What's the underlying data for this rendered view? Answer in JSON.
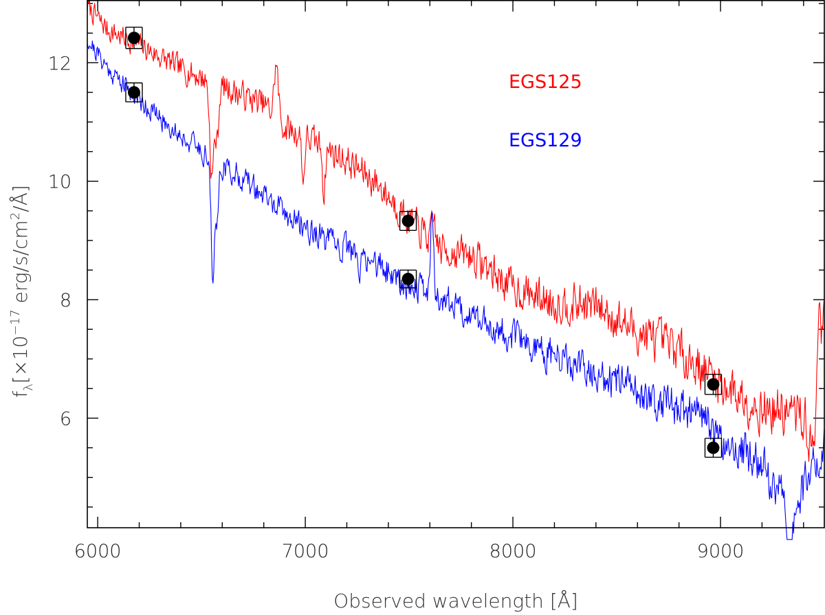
{
  "chart_data": {
    "type": "line",
    "title": "",
    "xlabel": "Observed wavelength [Å]",
    "ylabel_parts": {
      "f": "f",
      "lambda": "λ",
      "bracket_open": "[×10",
      "exponent": "−17",
      "units_a": " erg/s/cm",
      "units_exp": "2",
      "units_b": "/Å]"
    },
    "xlim": [
      5950,
      9500
    ],
    "ylim": [
      4.15,
      13.05
    ],
    "xticks": [
      6000,
      7000,
      8000,
      9000
    ],
    "yticks": [
      6,
      8,
      10,
      12
    ],
    "x_minor_step": 200,
    "y_minor_step": 0.5,
    "legend": [
      {
        "name": "EGS125",
        "color": "#ff0000"
      },
      {
        "name": "EGS129",
        "color": "#0000ff"
      }
    ],
    "series": [
      {
        "name": "EGS125",
        "color": "#ff0000",
        "noise": 0.17,
        "seed": 7,
        "anchors": [
          [
            5950,
            12.95
          ],
          [
            6050,
            12.55
          ],
          [
            6200,
            12.3
          ],
          [
            6400,
            11.9
          ],
          [
            6600,
            11.6
          ],
          [
            6800,
            11.3
          ],
          [
            6900,
            10.9
          ],
          [
            7000,
            10.75
          ],
          [
            7200,
            10.35
          ],
          [
            7350,
            9.95
          ],
          [
            7500,
            9.35
          ],
          [
            7650,
            8.85
          ],
          [
            7800,
            8.75
          ],
          [
            8000,
            8.2
          ],
          [
            8200,
            7.95
          ],
          [
            8400,
            7.9
          ],
          [
            8600,
            7.45
          ],
          [
            8800,
            7.15
          ],
          [
            9000,
            6.6
          ],
          [
            9200,
            6.15
          ],
          [
            9300,
            6.1
          ],
          [
            9400,
            6.05
          ],
          [
            9450,
            5.3
          ],
          [
            9500,
            7.8
          ]
        ],
        "features": [
          [
            6550,
            -1.6,
            10
          ],
          [
            6575,
            -0.9,
            8
          ],
          [
            6860,
            0.9,
            10
          ],
          [
            6990,
            -0.8,
            6
          ],
          [
            7090,
            -0.8,
            6
          ],
          [
            7620,
            0.4,
            8
          ],
          [
            9470,
            1.5,
            8
          ]
        ]
      },
      {
        "name": "EGS129",
        "color": "#0000ff",
        "noise": 0.15,
        "seed": 21,
        "anchors": [
          [
            5950,
            12.4
          ],
          [
            6050,
            11.9
          ],
          [
            6150,
            11.55
          ],
          [
            6300,
            11.05
          ],
          [
            6450,
            10.65
          ],
          [
            6600,
            10.25
          ],
          [
            6700,
            10.05
          ],
          [
            6900,
            9.45
          ],
          [
            7100,
            9.0
          ],
          [
            7300,
            8.7
          ],
          [
            7500,
            8.25
          ],
          [
            7700,
            7.95
          ],
          [
            7900,
            7.55
          ],
          [
            8100,
            7.2
          ],
          [
            8300,
            6.85
          ],
          [
            8500,
            6.6
          ],
          [
            8700,
            6.3
          ],
          [
            8900,
            6.05
          ],
          [
            9000,
            5.65
          ],
          [
            9100,
            5.45
          ],
          [
            9200,
            5.15
          ],
          [
            9300,
            4.7
          ],
          [
            9350,
            4.3
          ],
          [
            9400,
            4.8
          ],
          [
            9500,
            5.7
          ]
        ],
        "features": [
          [
            6555,
            -2.2,
            8
          ],
          [
            6575,
            -1.0,
            6
          ],
          [
            7610,
            1.3,
            8
          ],
          [
            7260,
            -0.5,
            6
          ],
          [
            9330,
            -0.8,
            8
          ]
        ]
      }
    ],
    "photometry": [
      {
        "series": "EGS125",
        "x": 6175,
        "y": 12.42,
        "err": 0.18
      },
      {
        "series": "EGS129",
        "x": 6175,
        "y": 11.5,
        "err": 0.16
      },
      {
        "series": "EGS125",
        "x": 7495,
        "y": 9.33,
        "err": 0.16
      },
      {
        "series": "EGS129",
        "x": 7495,
        "y": 8.35,
        "err": 0.15
      },
      {
        "series": "EGS125",
        "x": 8965,
        "y": 6.57,
        "err": 0.17
      },
      {
        "series": "EGS129",
        "x": 8965,
        "y": 5.5,
        "err": 0.16
      }
    ]
  }
}
